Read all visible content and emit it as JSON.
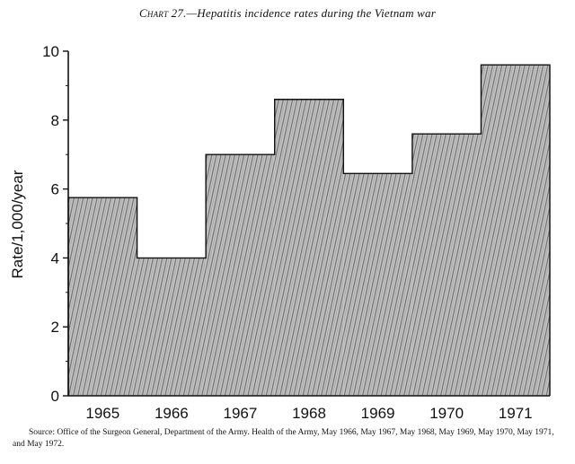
{
  "figure": {
    "title_prefix": "Chart 27.",
    "title_text": "—Hepatitis incidence rates during the Vietnam war",
    "source_note": "Source: Office of the Surgeon General, Department of the Army. Health of the Army, May 1966, May 1967, May 1968, May 1969, May 1970, May 1971, and May 1972."
  },
  "chart_data": {
    "type": "bar",
    "style": "step-histogram, hatched fill, adjacent bars",
    "title": "Hepatitis incidence rates during the Vietnam war",
    "xlabel": "",
    "ylabel": "Rate/1,000/year",
    "categories": [
      "1965",
      "1966",
      "1967",
      "1968",
      "1969",
      "1970",
      "1971"
    ],
    "series": [
      {
        "values": [
          5.75,
          4.0,
          7.0,
          8.6,
          6.45,
          7.6,
          9.6
        ]
      }
    ],
    "ylim": [
      0,
      10
    ],
    "yticks": [
      0,
      2,
      4,
      6,
      8,
      10
    ],
    "grid": false,
    "legend": "none",
    "colors": {
      "fill": "#bdbdbd",
      "hatch": "#7a7a7a",
      "stroke": "#111111"
    }
  }
}
